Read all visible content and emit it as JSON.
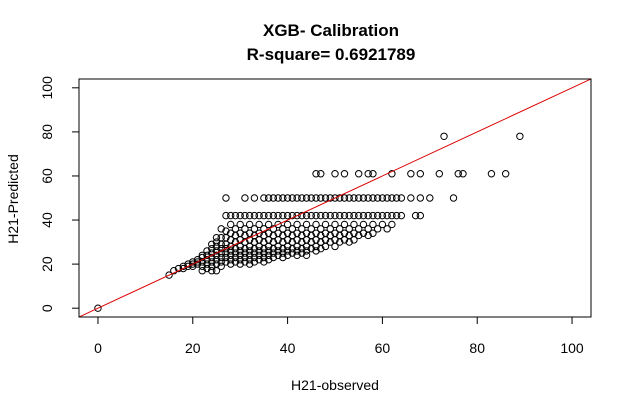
{
  "chart_data": {
    "type": "scatter",
    "title": "XGB- Calibration",
    "subtitle": "R-square= 0.6921789",
    "xlabel": "H21-observed",
    "ylabel": "H21-Predicted",
    "xlim": [
      -4,
      104
    ],
    "ylim": [
      -4,
      104
    ],
    "xticks": [
      0,
      20,
      40,
      60,
      80,
      100
    ],
    "yticks": [
      0,
      20,
      40,
      60,
      80,
      100
    ],
    "reference_line": {
      "intercept": 0,
      "slope": 1,
      "color": "#dd0000"
    },
    "point_color": "#000000",
    "grid": false,
    "legend": "none",
    "points": [
      [
        0,
        0
      ],
      [
        15,
        15
      ],
      [
        16,
        17
      ],
      [
        17,
        18
      ],
      [
        18,
        18
      ],
      [
        18,
        19
      ],
      [
        19,
        19
      ],
      [
        19,
        20
      ],
      [
        20,
        19
      ],
      [
        20,
        20
      ],
      [
        20,
        21
      ],
      [
        21,
        20
      ],
      [
        21,
        21
      ],
      [
        21,
        22
      ],
      [
        22,
        17
      ],
      [
        22,
        19
      ],
      [
        22,
        21
      ],
      [
        22,
        23
      ],
      [
        22,
        24
      ],
      [
        23,
        18
      ],
      [
        23,
        20
      ],
      [
        23,
        22
      ],
      [
        23,
        24
      ],
      [
        23,
        26
      ],
      [
        24,
        17
      ],
      [
        24,
        19
      ],
      [
        24,
        21
      ],
      [
        24,
        23
      ],
      [
        24,
        25
      ],
      [
        24,
        27
      ],
      [
        24,
        29
      ],
      [
        25,
        17
      ],
      [
        25,
        20
      ],
      [
        25,
        22
      ],
      [
        25,
        24
      ],
      [
        25,
        26
      ],
      [
        25,
        28
      ],
      [
        25,
        30
      ],
      [
        25,
        32
      ],
      [
        26,
        19
      ],
      [
        26,
        21
      ],
      [
        26,
        23
      ],
      [
        26,
        25
      ],
      [
        26,
        27
      ],
      [
        26,
        29
      ],
      [
        26,
        32
      ],
      [
        26,
        36
      ],
      [
        27,
        21
      ],
      [
        27,
        23
      ],
      [
        27,
        25
      ],
      [
        27,
        27
      ],
      [
        27,
        29
      ],
      [
        27,
        32
      ],
      [
        27,
        35
      ],
      [
        27,
        42
      ],
      [
        27,
        50
      ],
      [
        28,
        20
      ],
      [
        28,
        22
      ],
      [
        28,
        24
      ],
      [
        28,
        26
      ],
      [
        28,
        28
      ],
      [
        28,
        31
      ],
      [
        28,
        34
      ],
      [
        28,
        38
      ],
      [
        28,
        42
      ],
      [
        29,
        21
      ],
      [
        29,
        23
      ],
      [
        29,
        25
      ],
      [
        29,
        27
      ],
      [
        29,
        30
      ],
      [
        29,
        33
      ],
      [
        29,
        36
      ],
      [
        29,
        42
      ],
      [
        30,
        20
      ],
      [
        30,
        22
      ],
      [
        30,
        24
      ],
      [
        30,
        26
      ],
      [
        30,
        28
      ],
      [
        30,
        31
      ],
      [
        30,
        34
      ],
      [
        30,
        38
      ],
      [
        30,
        42
      ],
      [
        31,
        21
      ],
      [
        31,
        23
      ],
      [
        31,
        25
      ],
      [
        31,
        27
      ],
      [
        31,
        30
      ],
      [
        31,
        33
      ],
      [
        31,
        36
      ],
      [
        31,
        42
      ],
      [
        31,
        50
      ],
      [
        32,
        20
      ],
      [
        32,
        22
      ],
      [
        32,
        24
      ],
      [
        32,
        26
      ],
      [
        32,
        28
      ],
      [
        32,
        31
      ],
      [
        32,
        34
      ],
      [
        32,
        38
      ],
      [
        32,
        42
      ],
      [
        33,
        21
      ],
      [
        33,
        23
      ],
      [
        33,
        25
      ],
      [
        33,
        27
      ],
      [
        33,
        30
      ],
      [
        33,
        33
      ],
      [
        33,
        36
      ],
      [
        33,
        42
      ],
      [
        33,
        50
      ],
      [
        34,
        22
      ],
      [
        34,
        24
      ],
      [
        34,
        26
      ],
      [
        34,
        28
      ],
      [
        34,
        31
      ],
      [
        34,
        34
      ],
      [
        34,
        38
      ],
      [
        34,
        42
      ],
      [
        35,
        21
      ],
      [
        35,
        23
      ],
      [
        35,
        25
      ],
      [
        35,
        27
      ],
      [
        35,
        30
      ],
      [
        35,
        33
      ],
      [
        35,
        36
      ],
      [
        35,
        42
      ],
      [
        35,
        50
      ],
      [
        36,
        22
      ],
      [
        36,
        24
      ],
      [
        36,
        26
      ],
      [
        36,
        28
      ],
      [
        36,
        31
      ],
      [
        36,
        34
      ],
      [
        36,
        38
      ],
      [
        36,
        42
      ],
      [
        36,
        50
      ],
      [
        37,
        23
      ],
      [
        37,
        25
      ],
      [
        37,
        27
      ],
      [
        37,
        30
      ],
      [
        37,
        33
      ],
      [
        37,
        36
      ],
      [
        37,
        42
      ],
      [
        37,
        50
      ],
      [
        38,
        24
      ],
      [
        38,
        26
      ],
      [
        38,
        28
      ],
      [
        38,
        31
      ],
      [
        38,
        34
      ],
      [
        38,
        38
      ],
      [
        38,
        42
      ],
      [
        38,
        50
      ],
      [
        39,
        23
      ],
      [
        39,
        25
      ],
      [
        39,
        27
      ],
      [
        39,
        30
      ],
      [
        39,
        33
      ],
      [
        39,
        36
      ],
      [
        39,
        42
      ],
      [
        39,
        50
      ],
      [
        40,
        24
      ],
      [
        40,
        26
      ],
      [
        40,
        28
      ],
      [
        40,
        31
      ],
      [
        40,
        34
      ],
      [
        40,
        38
      ],
      [
        40,
        42
      ],
      [
        40,
        50
      ],
      [
        41,
        25
      ],
      [
        41,
        27
      ],
      [
        41,
        30
      ],
      [
        41,
        33
      ],
      [
        41,
        36
      ],
      [
        41,
        42
      ],
      [
        41,
        50
      ],
      [
        42,
        24
      ],
      [
        42,
        26
      ],
      [
        42,
        28
      ],
      [
        42,
        31
      ],
      [
        42,
        34
      ],
      [
        42,
        38
      ],
      [
        42,
        42
      ],
      [
        42,
        50
      ],
      [
        43,
        25
      ],
      [
        43,
        27
      ],
      [
        43,
        30
      ],
      [
        43,
        33
      ],
      [
        43,
        36
      ],
      [
        43,
        42
      ],
      [
        43,
        50
      ],
      [
        44,
        24
      ],
      [
        44,
        26
      ],
      [
        44,
        28
      ],
      [
        44,
        31
      ],
      [
        44,
        34
      ],
      [
        44,
        38
      ],
      [
        44,
        42
      ],
      [
        44,
        50
      ],
      [
        45,
        27
      ],
      [
        45,
        30
      ],
      [
        45,
        33
      ],
      [
        45,
        36
      ],
      [
        45,
        42
      ],
      [
        45,
        50
      ],
      [
        46,
        26
      ],
      [
        46,
        28
      ],
      [
        46,
        31
      ],
      [
        46,
        34
      ],
      [
        46,
        38
      ],
      [
        46,
        42
      ],
      [
        46,
        50
      ],
      [
        46,
        61
      ],
      [
        47,
        27
      ],
      [
        47,
        30
      ],
      [
        47,
        33
      ],
      [
        47,
        36
      ],
      [
        47,
        42
      ],
      [
        47,
        50
      ],
      [
        47,
        61
      ],
      [
        48,
        28
      ],
      [
        48,
        31
      ],
      [
        48,
        34
      ],
      [
        48,
        38
      ],
      [
        48,
        42
      ],
      [
        48,
        50
      ],
      [
        49,
        30
      ],
      [
        49,
        33
      ],
      [
        49,
        36
      ],
      [
        49,
        42
      ],
      [
        49,
        50
      ],
      [
        50,
        28
      ],
      [
        50,
        31
      ],
      [
        50,
        34
      ],
      [
        50,
        38
      ],
      [
        50,
        42
      ],
      [
        50,
        50
      ],
      [
        50,
        61
      ],
      [
        51,
        30
      ],
      [
        51,
        33
      ],
      [
        51,
        36
      ],
      [
        51,
        42
      ],
      [
        51,
        50
      ],
      [
        52,
        31
      ],
      [
        52,
        34
      ],
      [
        52,
        38
      ],
      [
        52,
        42
      ],
      [
        52,
        50
      ],
      [
        52,
        61
      ],
      [
        53,
        30
      ],
      [
        53,
        33
      ],
      [
        53,
        36
      ],
      [
        53,
        42
      ],
      [
        53,
        50
      ],
      [
        54,
        31
      ],
      [
        54,
        34
      ],
      [
        54,
        38
      ],
      [
        54,
        42
      ],
      [
        54,
        50
      ],
      [
        55,
        33
      ],
      [
        55,
        36
      ],
      [
        55,
        42
      ],
      [
        55,
        50
      ],
      [
        55,
        61
      ],
      [
        56,
        34
      ],
      [
        56,
        38
      ],
      [
        56,
        42
      ],
      [
        56,
        50
      ],
      [
        57,
        33
      ],
      [
        57,
        36
      ],
      [
        57,
        42
      ],
      [
        57,
        50
      ],
      [
        57,
        61
      ],
      [
        58,
        34
      ],
      [
        58,
        38
      ],
      [
        58,
        42
      ],
      [
        58,
        50
      ],
      [
        58,
        61
      ],
      [
        59,
        36
      ],
      [
        59,
        42
      ],
      [
        59,
        50
      ],
      [
        60,
        38
      ],
      [
        60,
        42
      ],
      [
        60,
        50
      ],
      [
        61,
        36
      ],
      [
        61,
        42
      ],
      [
        61,
        50
      ],
      [
        62,
        38
      ],
      [
        62,
        42
      ],
      [
        62,
        50
      ],
      [
        62,
        61
      ],
      [
        63,
        42
      ],
      [
        63,
        50
      ],
      [
        64,
        42
      ],
      [
        64,
        50
      ],
      [
        66,
        50
      ],
      [
        66,
        61
      ],
      [
        67,
        42
      ],
      [
        68,
        42
      ],
      [
        68,
        50
      ],
      [
        68,
        61
      ],
      [
        70,
        50
      ],
      [
        72,
        61
      ],
      [
        73,
        78
      ],
      [
        75,
        50
      ],
      [
        76,
        61
      ],
      [
        77,
        61
      ],
      [
        83,
        61
      ],
      [
        86,
        61
      ],
      [
        89,
        78
      ]
    ]
  }
}
